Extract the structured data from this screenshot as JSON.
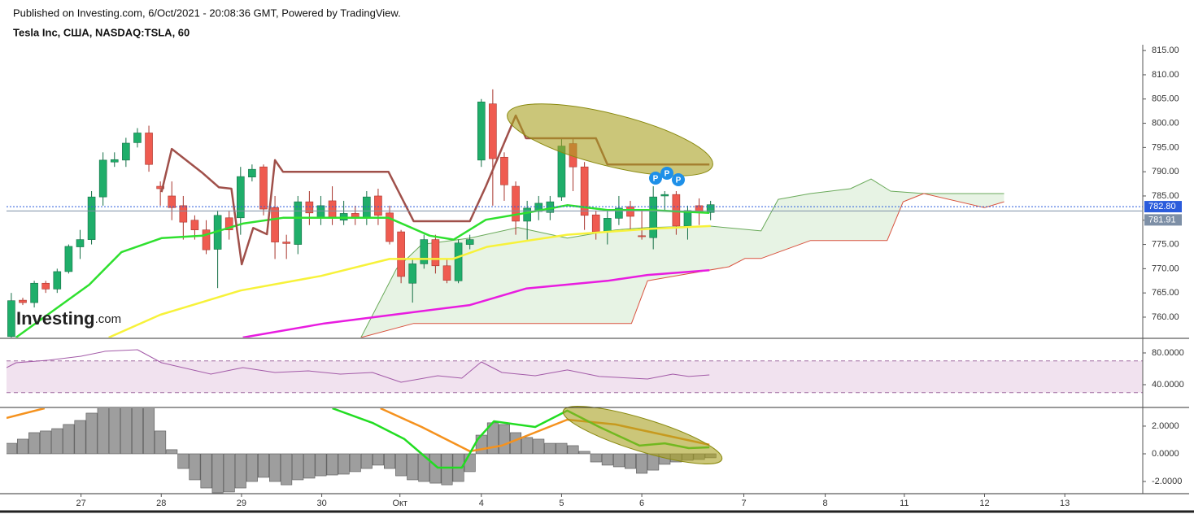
{
  "header": {
    "published": "Published on Investing.com, 6/Oct/2021 - 20:08:36 GMT, Powered by TradingView.",
    "symbol": "Tesla Inc, США, NASDAQ:TSLA, 60"
  },
  "watermark": [
    "Investing",
    ".com"
  ],
  "chart_data": [
    {
      "type": "candlestick",
      "xlim": [
        -0.42,
        98.7
      ],
      "ylim": [
        755.8,
        816.2
      ],
      "yticks": [
        {
          "value": 760,
          "label": "760.00"
        },
        {
          "value": 765,
          "label": "765.00"
        },
        {
          "value": 770,
          "label": "770.00"
        },
        {
          "value": 775,
          "label": "775.00"
        },
        {
          "value": 780,
          "label": "780.00"
        },
        {
          "value": 785,
          "label": "785.00"
        },
        {
          "value": 790,
          "label": "790.00"
        },
        {
          "value": 795,
          "label": "795.00"
        },
        {
          "value": 800,
          "label": "800.00"
        },
        {
          "value": 805,
          "label": "805.00"
        },
        {
          "value": 810,
          "label": "810.00"
        },
        {
          "value": 815,
          "label": "815.00"
        }
      ],
      "open": [
        756,
        763.5,
        763,
        767,
        765.8,
        769.4,
        774.5,
        776,
        784.8,
        792,
        792.4,
        796,
        798,
        787,
        785,
        783,
        780,
        778,
        774,
        780.5,
        780.5,
        788.9,
        791,
        782.6,
        775.5,
        775,
        783.8,
        780.5,
        784,
        780,
        781.4,
        780.5,
        785,
        781.5,
        777.6,
        767,
        771,
        776,
        770.6,
        767.5,
        775,
        792.4,
        804,
        793,
        787,
        779.8,
        781.8,
        781.6,
        784.8,
        795.8,
        791,
        781.1,
        777.6,
        780.4,
        782.8,
        776.8,
        776.4,
        785,
        785.3,
        778.8,
        783,
        781.6
      ],
      "high": [
        765,
        764,
        767.5,
        767.5,
        770,
        775,
        778,
        786,
        794,
        794,
        797,
        799,
        799.5,
        788,
        788,
        785,
        781,
        780,
        782,
        782,
        791,
        791.5,
        791.5,
        785,
        777,
        785,
        786,
        785,
        787,
        784,
        783,
        786,
        786.5,
        783,
        778,
        772,
        777,
        777,
        772,
        776,
        777,
        805,
        807,
        794,
        788,
        784,
        785,
        785,
        797,
        797,
        792,
        782,
        782,
        785,
        784,
        782,
        787,
        786,
        786,
        783,
        784.5,
        784
      ],
      "low": [
        755,
        762.5,
        762,
        765,
        765,
        769,
        772,
        775,
        783,
        791,
        791,
        795,
        790,
        783,
        780,
        776,
        776,
        773,
        766,
        776,
        777,
        788,
        781,
        772,
        772,
        773,
        779,
        779,
        779,
        779,
        779,
        779,
        779,
        775,
        767,
        763,
        770,
        769,
        767,
        767,
        774,
        791,
        783,
        784,
        777,
        776,
        780,
        780,
        784,
        786,
        778,
        776,
        775,
        779,
        778,
        776,
        774,
        782,
        777,
        776,
        779,
        780
      ],
      "close": [
        763.4,
        763,
        767,
        765.8,
        769.4,
        774.6,
        776,
        784.8,
        792.4,
        792.5,
        795.9,
        798,
        791.5,
        786.5,
        782.6,
        779.6,
        778,
        773.9,
        781,
        778,
        789,
        790.5,
        782.3,
        775.5,
        775.2,
        783.8,
        781.5,
        783,
        780.5,
        781.4,
        780.4,
        784.8,
        781,
        775.6,
        768.4,
        771,
        776,
        770.6,
        767.6,
        775.3,
        776,
        804.4,
        792.7,
        787.3,
        779.8,
        782.5,
        783.5,
        783.8,
        795.3,
        791,
        781,
        777.6,
        780.4,
        782.5,
        780.8,
        776.6,
        784.8,
        785.3,
        778.8,
        782,
        781.6,
        783.2
      ],
      "up_color": "#1fae6a",
      "down_color": "#ef5b50",
      "cloud": {
        "color": "#e3f1df",
        "upper": {
          "color": "#6aaa5a",
          "x": [
            30.5,
            33.6,
            35.8,
            40,
            44.2,
            48.5,
            52.7,
            55.5,
            60.9,
            65.4,
            66.9,
            69.7,
            73.2,
            75,
            76.7,
            79.6,
            86.6
          ],
          "values": [
            755.8,
            770,
            775,
            776.3,
            778.5,
            776.3,
            778,
            778.5,
            778.8,
            777.8,
            784.3,
            785.5,
            786.5,
            788.5,
            786,
            785.5,
            785.5
          ]
        },
        "lower": {
          "color": "#d9533f",
          "x": [
            30.5,
            35.1,
            54.1,
            55.5,
            58.4,
            62.6,
            64,
            65.4,
            69.7,
            76.4,
            77.8,
            79.6,
            84.9,
            86.6
          ],
          "values": [
            755.8,
            758.7,
            758.7,
            767.5,
            768.7,
            770.4,
            772.1,
            772.1,
            775.8,
            775.8,
            783.8,
            785.5,
            782.6,
            783.8
          ]
        }
      },
      "lines": [
        {
          "color": "#f7f23a",
          "x": [
            8.5,
            13,
            20,
            27,
            33,
            38.5,
            41.5,
            48.5,
            55.5,
            61
          ],
          "values": [
            755.8,
            760.5,
            765.5,
            768.5,
            772,
            772,
            774.5,
            777,
            778.2,
            778.8
          ]
        },
        {
          "color": "#e81ce0",
          "x": [
            20.2,
            27.3,
            34.3,
            40,
            44.9,
            52,
            55.5,
            60.9
          ],
          "values": [
            755.8,
            758.7,
            760.8,
            762.5,
            765.9,
            767.5,
            768.7,
            769.7
          ]
        },
        {
          "color": "#2fe02f",
          "x": [
            0.4,
            6.8,
            9.6,
            13.1,
            16.7,
            20.2,
            23.7,
            27.3,
            32.9,
            36.5,
            38.6,
            41.4,
            44.9,
            48.5,
            52,
            55.5,
            60.9
          ],
          "values": [
            755.8,
            766.7,
            773.4,
            776.3,
            776.8,
            779.3,
            780.5,
            780.5,
            780.5,
            776.8,
            776,
            780.1,
            781.5,
            783.1,
            782.1,
            782.1,
            781.5
          ]
        },
        {
          "color": "#a0504a",
          "x": [
            13.1,
            14,
            16.7,
            18.1,
            19.2,
            20.1,
            21.1,
            22.3,
            23,
            23.7,
            32.9,
            35.1,
            40,
            41.4,
            44,
            44.9,
            51,
            52,
            60.9
          ],
          "values": [
            785.8,
            794.7,
            789.7,
            786.8,
            786.5,
            770.9,
            778.4,
            777.1,
            792.4,
            790,
            790,
            779.8,
            779.8,
            787,
            801.6,
            796.9,
            796.9,
            791.5,
            791.5
          ]
        }
      ],
      "price_lines": [
        {
          "value": 782.8,
          "label": "782.80",
          "color": "#2b5cdc"
        },
        {
          "value": 781.91,
          "label": "781.91",
          "color": "#7d8fa6"
        }
      ],
      "annotations": [
        "P",
        "P",
        "P"
      ],
      "annotation_color": "#1e90e8"
    },
    {
      "type": "line",
      "xlim": [
        -0.42,
        98.7
      ],
      "ylim": [
        12.3,
        97.4
      ],
      "yticks": [
        {
          "value": 80,
          "label": "80.0000"
        },
        {
          "value": 40,
          "label": "40.0000"
        }
      ],
      "band": [
        30,
        70
      ],
      "band_color": "#f1e2ef",
      "series": [
        {
          "color": "#a35ba8",
          "x": [
            -0.42,
            0.42,
            3.25,
            6.08,
            8.2,
            11,
            13.1,
            17.4,
            20.2,
            23,
            25.9,
            28.7,
            31.5,
            34,
            37.2,
            39.3,
            41,
            42.8,
            45.7,
            48.5,
            51.3,
            55.5,
            57.7,
            59.1,
            60.9
          ],
          "values": [
            61.5,
            67.7,
            70.8,
            75.9,
            82.1,
            84.1,
            67.7,
            53.3,
            61.5,
            55.4,
            57.4,
            53.3,
            55.4,
            43.1,
            51.3,
            48.2,
            68.7,
            55.4,
            51.3,
            58.5,
            50.3,
            47.2,
            53.3,
            50.3,
            52.3
          ]
        }
      ]
    },
    {
      "type": "bar",
      "xlim": [
        -0.42,
        98.7
      ],
      "ylim": [
        -2.88,
        3.29
      ],
      "yticks": [
        {
          "value": 2,
          "label": "2.0000"
        },
        {
          "value": 0,
          "label": "0.0000"
        },
        {
          "value": -2,
          "label": "-2.0000"
        }
      ],
      "xticks": [
        {
          "value": 6.08,
          "label": "27"
        },
        {
          "value": 13.08,
          "label": "28"
        },
        {
          "value": 20.08,
          "label": "29"
        },
        {
          "value": 27.08,
          "label": "30"
        },
        {
          "value": 33.9,
          "label": "Окт"
        },
        {
          "value": 41,
          "label": "4"
        },
        {
          "value": 48,
          "label": "5"
        },
        {
          "value": 55,
          "label": "6"
        },
        {
          "value": 63.9,
          "label": "7"
        },
        {
          "value": 71,
          "label": "8"
        },
        {
          "value": 77.9,
          "label": "11"
        },
        {
          "value": 84.9,
          "label": "12"
        },
        {
          "value": 91.9,
          "label": "13"
        }
      ],
      "color": "#9e9e9e",
      "values": [
        0.76,
        1.06,
        1.53,
        1.65,
        1.82,
        2.12,
        2.41,
        2.94,
        3.5,
        3.7,
        3.8,
        3.6,
        3.4,
        1.65,
        0.3,
        -1.06,
        -1.88,
        -2.47,
        -2.82,
        -2.76,
        -2.47,
        -2.0,
        -1.7,
        -2.0,
        -2.24,
        -1.88,
        -1.76,
        -1.59,
        -1.53,
        -1.47,
        -1.29,
        -1.06,
        -0.82,
        -1.06,
        -1.59,
        -1.88,
        -2.0,
        -2.12,
        -2.24,
        -2.0,
        -1.29,
        1.35,
        2.24,
        2.12,
        1.53,
        1.18,
        1.06,
        0.76,
        0.76,
        0.59,
        0.18,
        -0.59,
        -0.82,
        -0.94,
        -1.06,
        -1.41,
        -1.18,
        -0.76,
        -0.59,
        -0.47,
        -0.41,
        -0.29
      ],
      "lines": [
        {
          "color": "#f5921e",
          "x": [
            -0.42,
            2.9
          ],
          "values": [
            2.59,
            3.29
          ]
        },
        {
          "color": "#f5921e",
          "x": [
            32.2,
            35.8,
            40,
            42.8,
            48.5,
            52.7,
            57,
            60.9
          ],
          "values": [
            3.29,
            1.94,
            0.18,
            0.59,
            2.47,
            2.12,
            1.35,
            0.65
          ]
        },
        {
          "color": "#22dd22",
          "x": [
            28,
            31.5,
            34.3,
            37.2,
            39.3,
            40.7,
            42.1,
            45.7,
            48.5,
            51.3,
            54.8,
            57,
            59.1,
            60.9
          ],
          "values": [
            3.29,
            2.24,
            1.06,
            -1.0,
            -1.0,
            1.06,
            2.35,
            1.94,
            3.12,
            1.94,
            0.59,
            0.76,
            0.41,
            0.47
          ]
        }
      ]
    }
  ]
}
